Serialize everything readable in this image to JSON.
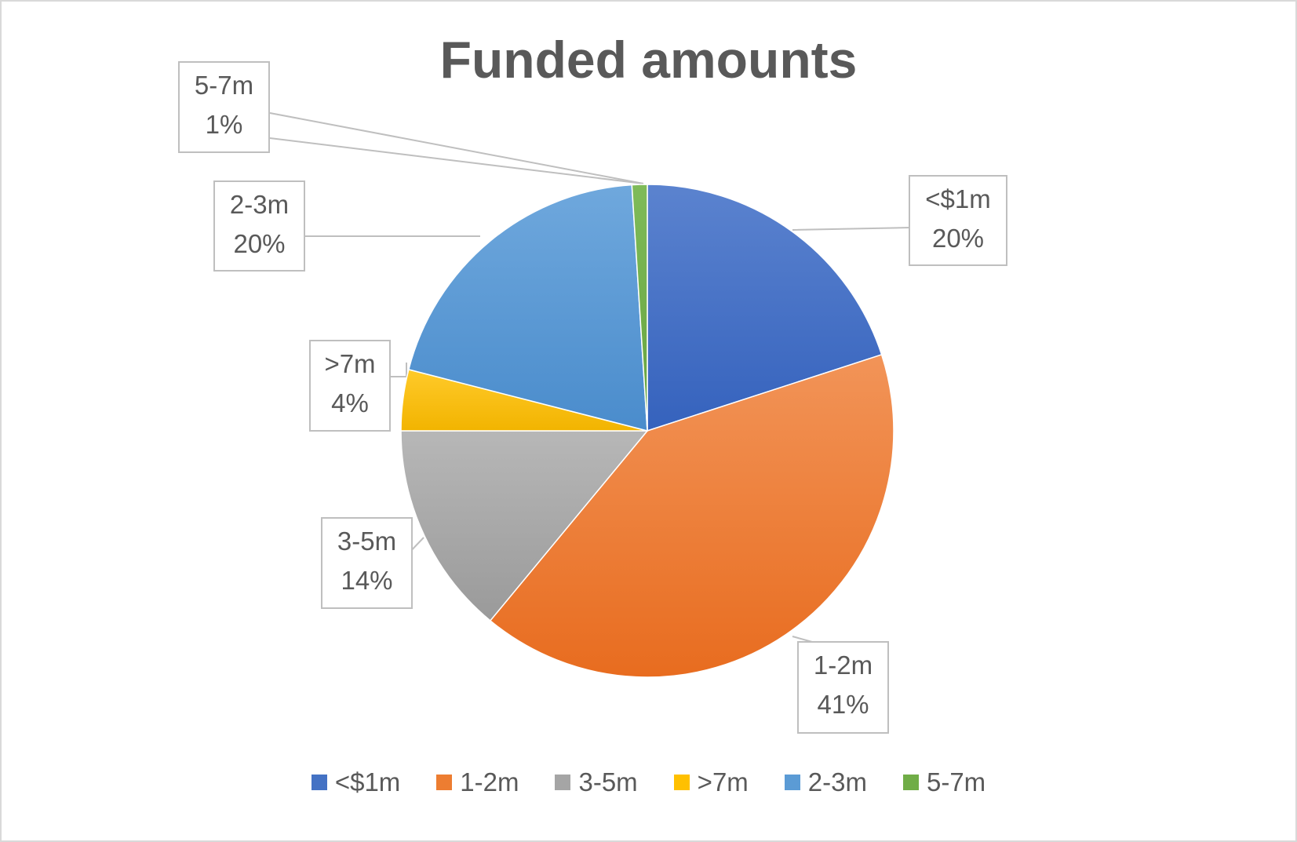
{
  "chart_data": {
    "type": "pie",
    "title": "Funded amounts",
    "categories": [
      "<$1m",
      "1-2m",
      "3-5m",
      ">7m",
      "2-3m",
      "5-7m"
    ],
    "values": [
      20,
      41,
      14,
      4,
      20,
      1
    ],
    "data_labels": [
      "20%",
      "41%",
      "14%",
      "4%",
      "20%",
      "1%"
    ],
    "colors": [
      "#4472C4",
      "#ED7D31",
      "#A5A5A5",
      "#FFC000",
      "#5B9BD5",
      "#70AD47"
    ],
    "legend": "bottom",
    "start_angle_deg": 0,
    "direction": "clockwise"
  }
}
